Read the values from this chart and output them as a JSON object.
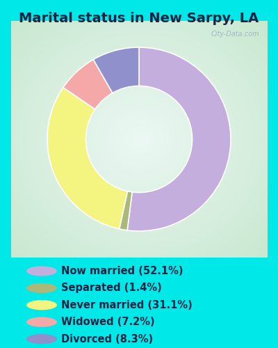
{
  "title": "Marital status in New Sarpy, LA",
  "title_color": "#222244",
  "slices": [
    {
      "label": "Now married (52.1%)",
      "value": 52.1,
      "color": "#c4aede"
    },
    {
      "label": "Separated (1.4%)",
      "value": 1.4,
      "color": "#aab87a"
    },
    {
      "label": "Never married (31.1%)",
      "value": 31.1,
      "color": "#f4f480"
    },
    {
      "label": "Widowed (7.2%)",
      "value": 7.2,
      "color": "#f4a8a8"
    },
    {
      "label": "Divorced (8.3%)",
      "value": 8.3,
      "color": "#9090cc"
    }
  ],
  "bg_color": "#00e8e8",
  "chart_bg_outer": "#c8e8d8",
  "chart_bg_inner": "#e8f4ec",
  "title_fontsize": 14,
  "legend_fontsize": 10.5,
  "watermark": "City-Data.com",
  "donut_outer_r": 1.0,
  "donut_width": 0.42
}
